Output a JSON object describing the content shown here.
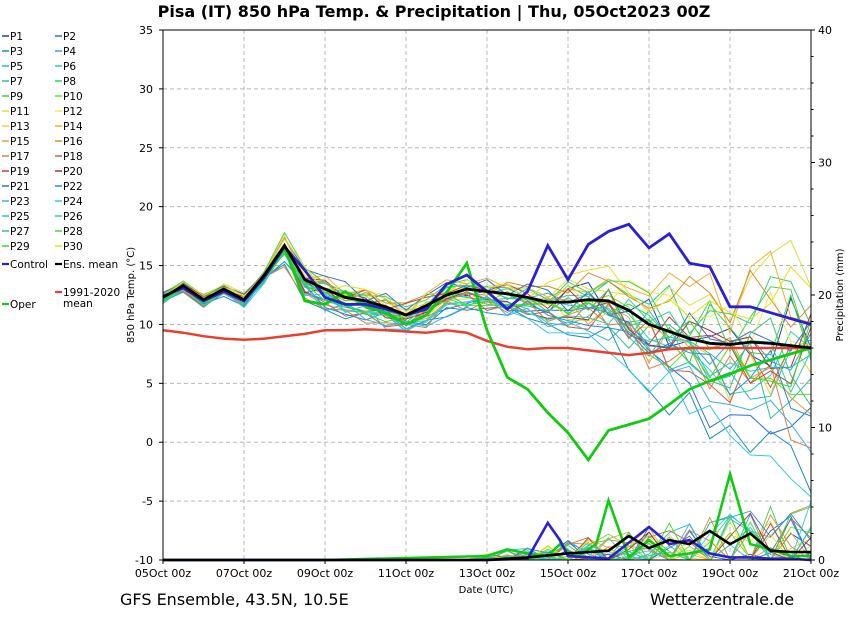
{
  "header": {
    "title": "Pisa  (IT)  850 hPa Temp. & Precipitation | Thu, 05Oct2023 00Z"
  },
  "footer": {
    "left": "GFS Ensemble, 43.5N, 10.5E",
    "right": "Wetterzentrale.de"
  },
  "chart_data": {
    "type": "line",
    "xlabel": "Date (UTC)",
    "ylabel": "850 hPa Temp. (°C)",
    "ylabel_right": "Precipitation (mm)",
    "x_ticks": [
      "05Oct 00z",
      "07Oct 00z",
      "09Oct 00z",
      "11Oct 00z",
      "13Oct 00z",
      "15Oct 00z",
      "17Oct 00z",
      "19Oct 00z",
      "21Oct 00z"
    ],
    "y_ticks": [
      "-10",
      "-5",
      "0",
      "5",
      "10",
      "15",
      "20",
      "25",
      "30",
      "35"
    ],
    "y_right_ticks": [
      "0",
      "10",
      "20",
      "30",
      "40"
    ],
    "xlim_days": [
      0,
      16
    ],
    "ylim": [
      -10,
      35
    ],
    "ylim_right": [
      0,
      40
    ],
    "grid": true,
    "legend_position": "left",
    "legend": [
      "P1",
      "P2",
      "P3",
      "P4",
      "P5",
      "P6",
      "P7",
      "P8",
      "P9",
      "P10",
      "P11",
      "P12",
      "P13",
      "P14",
      "P15",
      "P16",
      "P17",
      "P18",
      "P19",
      "P20",
      "P21",
      "P22",
      "P23",
      "P24",
      "P25",
      "P26",
      "P27",
      "P28",
      "P29",
      "P30",
      "Control",
      "Ens. mean",
      "1991-2020 mean",
      "Oper"
    ],
    "member_colors": [
      "#1f3fbf",
      "#2a6fd8",
      "#1f8fb0",
      "#3a9cf0",
      "#25c0c0",
      "#2ad0b0",
      "#2cc090",
      "#30d070",
      "#40d040",
      "#60e020",
      "#d8e040",
      "#f0e860",
      "#f0d040",
      "#f0b030",
      "#e8a040",
      "#d09030",
      "#e08040",
      "#d06040",
      "#c04040",
      "#b03030",
      "#3070d0",
      "#2090e0",
      "#40b0e0",
      "#30c8f0",
      "#20c8c8",
      "#30d0a0",
      "#40c080",
      "#50d050",
      "#30e030",
      "#e0e020"
    ],
    "special_colors": {
      "control": "#2b1fd6",
      "ens_mean": "#000000",
      "climate": "#e84030",
      "oper": "#10cc10"
    },
    "temp_series": {
      "ens_mean": {
        "x": [
          0,
          0.5,
          1,
          1.5,
          2,
          2.5,
          3,
          3.5,
          4,
          4.5,
          5,
          5.5,
          6,
          6.5,
          7,
          7.5,
          8,
          8.5,
          9,
          9.5,
          10,
          10.5,
          11,
          11.5,
          12,
          12.5,
          13,
          13.5,
          14,
          14.5,
          15,
          15.5,
          16
        ],
        "y": [
          12.3,
          13.3,
          12.1,
          13.0,
          12.1,
          14.2,
          16.7,
          13.8,
          13.0,
          12.3,
          12.0,
          11.5,
          10.8,
          11.6,
          12.5,
          13.0,
          12.8,
          12.6,
          12.3,
          11.9,
          11.9,
          12.1,
          12.0,
          11.2,
          10.0,
          9.4,
          8.8,
          8.4,
          8.3,
          8.5,
          8.4,
          8.2,
          8.0
        ]
      },
      "control": {
        "x": [
          0,
          0.5,
          1,
          1.5,
          2,
          2.5,
          3,
          3.5,
          4,
          4.5,
          5,
          5.5,
          6,
          6.5,
          7,
          7.5,
          8,
          8.5,
          9,
          9.5,
          10,
          10.5,
          11,
          11.5,
          12,
          12.5,
          13,
          13.5,
          14,
          14.5,
          15,
          15.5,
          16
        ],
        "y": [
          12.4,
          13.1,
          12.0,
          12.8,
          12.0,
          14.0,
          16.6,
          14.6,
          12.3,
          11.7,
          11.7,
          11.3,
          10.8,
          11.3,
          13.4,
          14.2,
          12.8,
          11.3,
          12.8,
          16.7,
          13.8,
          16.8,
          17.9,
          18.5,
          16.5,
          17.7,
          15.2,
          14.9,
          11.5,
          11.5,
          11.0,
          10.5,
          10.0
        ]
      },
      "oper": {
        "x": [
          0,
          0.5,
          1,
          1.5,
          2,
          2.5,
          3,
          3.5,
          4,
          4.5,
          5,
          5.5,
          6,
          6.5,
          7,
          7.5,
          8,
          8.5,
          9,
          9.5,
          10,
          10.5,
          11,
          11.5,
          12,
          12.5,
          13,
          13.5,
          14,
          14.5,
          15,
          15.5,
          16
        ],
        "y": [
          12.3,
          13.2,
          12.0,
          12.8,
          12.0,
          14.1,
          16.5,
          12.0,
          11.7,
          12.8,
          11.5,
          11.0,
          10.0,
          10.8,
          12.7,
          15.2,
          9.5,
          5.5,
          4.5,
          2.5,
          0.8,
          -1.5,
          1.0,
          1.5,
          2.0,
          3.2,
          4.5,
          5.2,
          5.8,
          6.5,
          7.0,
          7.5,
          8.0
        ]
      },
      "climate": {
        "x": [
          0,
          0.5,
          1,
          1.5,
          2,
          2.5,
          3,
          3.5,
          4,
          4.5,
          5,
          5.5,
          6,
          6.5,
          7,
          7.5,
          8,
          8.5,
          9,
          9.5,
          10,
          10.5,
          11,
          11.5,
          12,
          12.5,
          13,
          13.5,
          14,
          14.5,
          15,
          15.5,
          16
        ],
        "y": [
          9.5,
          9.3,
          9.0,
          8.8,
          8.7,
          8.8,
          9.0,
          9.2,
          9.5,
          9.5,
          9.6,
          9.5,
          9.4,
          9.3,
          9.5,
          9.3,
          8.6,
          8.1,
          7.9,
          8.0,
          8.0,
          7.8,
          7.6,
          7.4,
          7.6,
          7.9,
          8.0,
          8.0,
          8.0,
          8.0,
          8.0,
          8.0,
          8.0
        ]
      }
    },
    "precip_series": {
      "ens_mean": {
        "x": [
          0,
          4,
          8,
          9,
          10,
          11,
          11.5,
          12,
          12.5,
          13,
          13.5,
          14,
          14.5,
          15,
          15.5,
          16
        ],
        "y": [
          0,
          0,
          0,
          0.2,
          0.5,
          0.7,
          1.8,
          0.9,
          1.5,
          1.2,
          2.2,
          1.2,
          2.0,
          0.7,
          0.6,
          0.6
        ]
      },
      "control": {
        "x": [
          0,
          4,
          8,
          9,
          9.5,
          9.8,
          10,
          11,
          12,
          12.5,
          13,
          13.5,
          14,
          14.5,
          15,
          15.5,
          16
        ],
        "y": [
          0,
          0,
          0,
          0.1,
          2.8,
          1.5,
          0.3,
          0.1,
          2.5,
          1.2,
          1.5,
          0.5,
          0.2,
          0.2,
          0.1,
          0.1,
          0
        ]
      },
      "oper": {
        "x": [
          0,
          4,
          8,
          8.5,
          9,
          9.5,
          9.8,
          10.2,
          10.7,
          11,
          11.5,
          12,
          12.5,
          13,
          13.5,
          14,
          14.5,
          15,
          15.5,
          16
        ],
        "y": [
          0,
          0,
          0.3,
          0.8,
          0.5,
          0.3,
          1.2,
          0.2,
          1.2,
          4.5,
          0.2,
          1.5,
          0.3,
          0.5,
          0.8,
          6.5,
          1.2,
          0.8,
          0.3,
          0.3
        ]
      }
    }
  }
}
